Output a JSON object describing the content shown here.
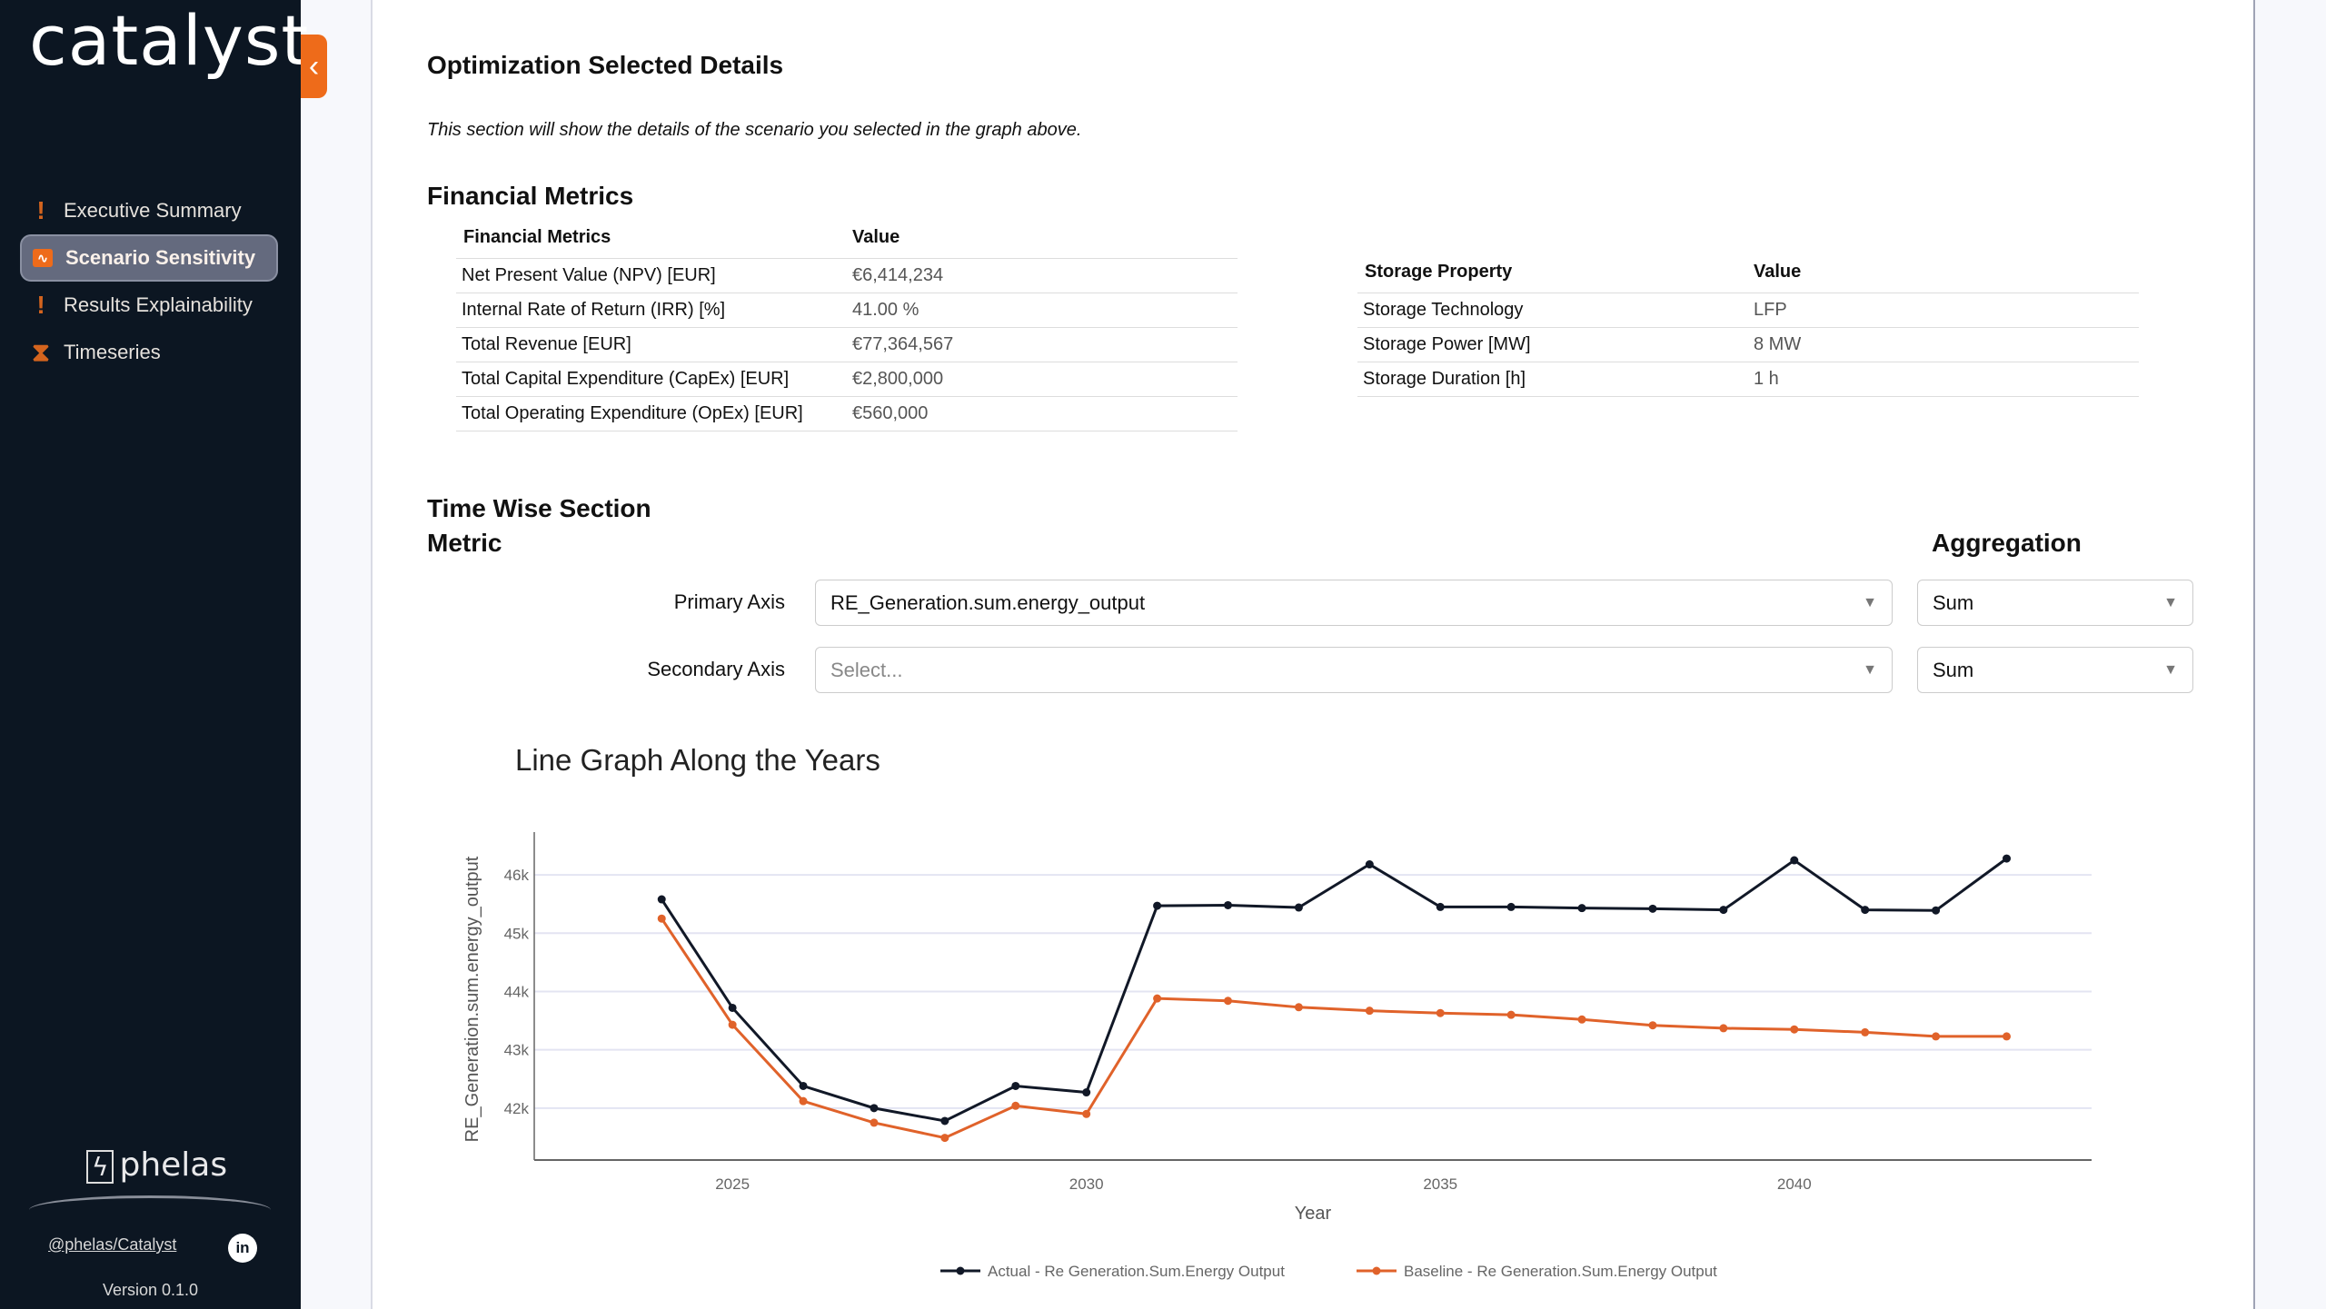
{
  "sidebar": {
    "logo": "catalyst",
    "collapse_icon": "chevron-left-icon",
    "items": [
      {
        "label": "Executive Summary",
        "icon": "exclamation-icon"
      },
      {
        "label": "Scenario Sensitivity",
        "icon": "waveform-icon",
        "active": true
      },
      {
        "label": "Results Explainability",
        "icon": "exclamation-icon"
      },
      {
        "label": "Timeseries",
        "icon": "hourglass-icon"
      }
    ],
    "brand": "phelas",
    "github_link": "@phelas/Catalyst",
    "linkedin": "in",
    "version": "Version 0.1.0"
  },
  "main": {
    "title": "Optimization Selected Details",
    "note": "This section will show the details of the scenario you selected in the graph above.",
    "financial_heading": "Financial Metrics",
    "financial_table": {
      "headers": [
        "Financial Metrics",
        "Value"
      ],
      "rows": [
        [
          "Net Present Value (NPV) [EUR]",
          "€6,414,234"
        ],
        [
          "Internal Rate of Return (IRR) [%]",
          "41.00 %"
        ],
        [
          "Total Revenue [EUR]",
          "€77,364,567"
        ],
        [
          "Total Capital Expenditure (CapEx) [EUR]",
          "€2,800,000"
        ],
        [
          "Total Operating Expenditure (OpEx) [EUR]",
          "€560,000"
        ]
      ]
    },
    "storage_table": {
      "headers": [
        "Storage Property",
        "Value"
      ],
      "rows": [
        [
          "Storage Technology",
          "LFP"
        ],
        [
          "Storage Power [MW]",
          "8 MW"
        ],
        [
          "Storage Duration [h]",
          "1 h"
        ]
      ]
    },
    "timewise_heading": "Time Wise Section",
    "metric_label": "Metric",
    "aggregation_label": "Aggregation",
    "primary_label": "Primary Axis",
    "primary_value": "RE_Generation.sum.energy_output",
    "primary_agg": "Sum",
    "secondary_label": "Secondary Axis",
    "secondary_placeholder": "Select...",
    "secondary_agg": "Sum"
  },
  "chart_data": {
    "type": "line",
    "title": "Line Graph Along the Years",
    "xlabel": "Year",
    "ylabel": "RE_Generation.sum.energy_output",
    "x": [
      2024,
      2025,
      2026,
      2027,
      2028,
      2029,
      2030,
      2031,
      2032,
      2033,
      2034,
      2035,
      2036,
      2037,
      2038,
      2039,
      2040,
      2041,
      2042,
      2043
    ],
    "xticks": [
      2025,
      2030,
      2035,
      2040
    ],
    "yticks": [
      42000,
      43000,
      44000,
      45000,
      46000
    ],
    "ytick_labels": [
      "42k",
      "43k",
      "44k",
      "45k",
      "46k"
    ],
    "xlim": [
      2022.2,
      2044.2
    ],
    "ylim": [
      41110,
      46640
    ],
    "legend": "bottom-center",
    "grid": true,
    "series": [
      {
        "name": "Actual - Re Generation.Sum.Energy Output",
        "color": "#111827",
        "values": [
          45580,
          43720,
          42380,
          42000,
          41780,
          42380,
          42270,
          45470,
          45480,
          45440,
          46180,
          45450,
          45450,
          45430,
          45420,
          45400,
          46250,
          45400,
          45390,
          46280
        ]
      },
      {
        "name": "Baseline - Re Generation.Sum.Energy Output",
        "color": "#e0622a",
        "values": [
          45250,
          43430,
          42120,
          41750,
          41490,
          42040,
          41900,
          43880,
          43840,
          43730,
          43670,
          43630,
          43600,
          43520,
          43420,
          43370,
          43350,
          43300,
          43230,
          43230
        ]
      }
    ]
  }
}
